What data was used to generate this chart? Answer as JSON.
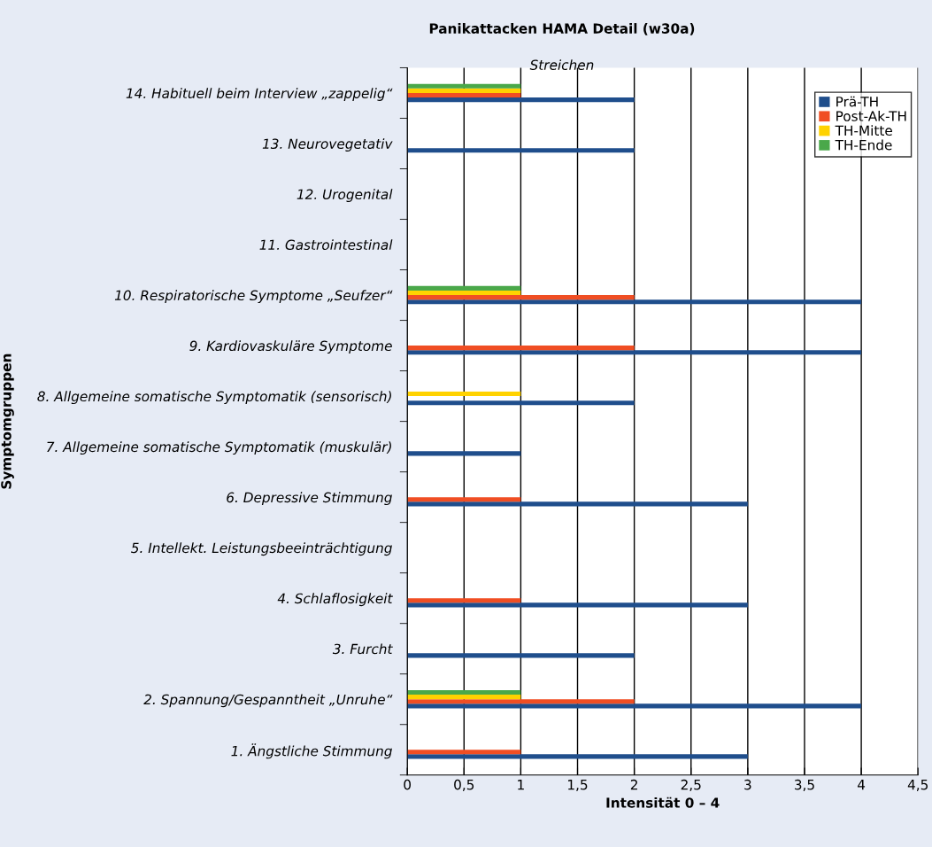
{
  "chart_data": {
    "type": "bar",
    "orientation": "horizontal",
    "title": "Panikattacken HAMA Detail (w30a)",
    "subtitle": "Streichen",
    "xlabel": "Intensität 0 – 4",
    "ylabel": "Symptomgruppen",
    "categories": [
      "14. Habituell beim Interview „zappelig“",
      "13. Neurovegetativ",
      "12. Urogenital",
      "11. Gastrointestinal",
      "10. Respiratorische Symptome „Seufzer“",
      "9. Kardiovaskuläre Symptome",
      "8. Allgemeine somatische Symptomatik (sensorisch)",
      "7. Allgemeine somatische Symptomatik (muskulär)",
      "6. Depressive Stimmung",
      "5. Intellekt. Leistungsbeeinträchtigung",
      "4. Schlaflosigkeit",
      "3. Furcht",
      "2. Spannung/Gespanntheit „Unruhe“",
      "1. Ängstliche Stimmung"
    ],
    "series": [
      {
        "name": "Prä-TH",
        "color": "#1f4e8c",
        "values": [
          2,
          2,
          null,
          null,
          4,
          4,
          2,
          1,
          3,
          null,
          3,
          2,
          4,
          3
        ]
      },
      {
        "name": "Post-Ak-TH",
        "color": "#f04e23",
        "values": [
          1,
          null,
          null,
          null,
          2,
          2,
          null,
          null,
          1,
          null,
          1,
          null,
          2,
          1
        ]
      },
      {
        "name": "TH-Mitte",
        "color": "#ffd200",
        "values": [
          1,
          null,
          null,
          null,
          1,
          null,
          1,
          null,
          null,
          null,
          null,
          null,
          1,
          null
        ]
      },
      {
        "name": "TH-Ende",
        "color": "#4aa84a",
        "values": [
          1,
          null,
          null,
          null,
          1,
          null,
          null,
          null,
          null,
          null,
          null,
          null,
          1,
          null
        ]
      }
    ],
    "xlim": [
      0,
      4.5
    ],
    "xticks": [
      0,
      {
        "value": 0.5,
        "label": "0,5"
      },
      1,
      {
        "value": 1.5,
        "label": "1,5"
      },
      2,
      {
        "value": 2.5,
        "label": "2,5"
      },
      3,
      {
        "value": 3.5,
        "label": "3,5"
      },
      4,
      {
        "value": 4.5,
        "label": "4,5"
      }
    ],
    "grid": "x",
    "legend": "top right"
  }
}
